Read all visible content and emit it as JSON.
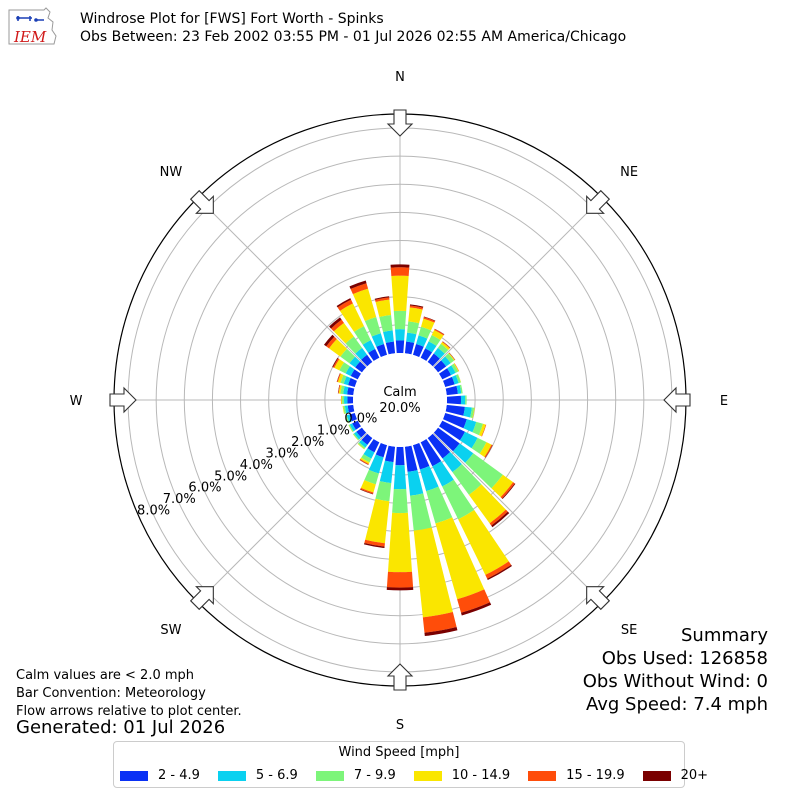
{
  "logo_text": "IEM",
  "title": {
    "line1": "Windrose Plot for [FWS] Fort Worth - Spinks",
    "line2": "Obs Between: 23 Feb 2002 03:55 PM - 01 Jul 2026 02:55 AM America/Chicago"
  },
  "notes": {
    "calm": "Calm values are < 2.0 mph",
    "convention": "Bar Convention: Meteorology",
    "arrows": "Flow arrows relative to plot center."
  },
  "generated": "Generated: 01 Jul 2026",
  "summary": {
    "heading": "Summary",
    "obs_used": "Obs Used: 126858",
    "obs_without_wind": "Obs Without Wind: 0",
    "avg_speed": "Avg Speed: 7.4 mph"
  },
  "legend": {
    "title": "Wind Speed [mph]",
    "items": [
      {
        "label": "2 - 4.9",
        "color": "#0a31f5"
      },
      {
        "label": "5 - 6.9",
        "color": "#0ad1f0"
      },
      {
        "label": "7 - 9.9",
        "color": "#7df57a"
      },
      {
        "label": "10 - 14.9",
        "color": "#fae600"
      },
      {
        "label": "15 - 19.9",
        "color": "#ff4d0a"
      },
      {
        "label": "20+",
        "color": "#7a0000"
      }
    ]
  },
  "chart_data": {
    "type": "windrose",
    "calm_label": "Calm",
    "calm_value": "20.0%",
    "direction_labels": [
      "N",
      "NE",
      "E",
      "SE",
      "S",
      "SW",
      "W",
      "NW"
    ],
    "radial_ticks": [
      "0.0%",
      "1.0%",
      "2.0%",
      "3.0%",
      "4.0%",
      "5.0%",
      "6.0%",
      "7.0%",
      "8.0%"
    ],
    "rmax": 8.5,
    "sector_width_deg": 10,
    "speed_bins": [
      "2 - 4.9",
      "5 - 6.9",
      "7 - 9.9",
      "10 - 14.9",
      "15 - 19.9",
      "20+"
    ],
    "directions_deg": [
      0,
      10,
      20,
      30,
      40,
      50,
      60,
      70,
      80,
      90,
      100,
      110,
      120,
      130,
      140,
      150,
      160,
      170,
      180,
      190,
      200,
      210,
      220,
      230,
      240,
      250,
      260,
      270,
      280,
      290,
      300,
      310,
      320,
      330,
      340,
      350
    ],
    "values": [
      [
        0.45,
        0.4,
        0.65,
        1.25,
        0.3,
        0.1
      ],
      [
        0.42,
        0.32,
        0.4,
        0.5,
        0.07,
        0.04
      ],
      [
        0.4,
        0.32,
        0.32,
        0.3,
        0.06,
        0.02
      ],
      [
        0.37,
        0.28,
        0.25,
        0.2,
        0.04,
        0.01
      ],
      [
        0.37,
        0.25,
        0.18,
        0.08,
        0.02,
        0.01
      ],
      [
        0.36,
        0.2,
        0.15,
        0.03,
        0.01,
        0.01
      ],
      [
        0.35,
        0.18,
        0.1,
        0.03,
        0.01,
        0.0
      ],
      [
        0.35,
        0.15,
        0.08,
        0.01,
        0.0,
        0.0
      ],
      [
        0.4,
        0.12,
        0.05,
        0.0,
        0.0,
        0.0
      ],
      [
        0.5,
        0.15,
        0.05,
        0.0,
        0.0,
        0.0
      ],
      [
        0.65,
        0.25,
        0.08,
        0.02,
        0.0,
        0.0
      ],
      [
        0.8,
        0.35,
        0.25,
        0.1,
        0.02,
        0.0
      ],
      [
        0.9,
        0.5,
        0.35,
        0.2,
        0.04,
        0.01
      ],
      [
        0.95,
        0.6,
        1.3,
        0.45,
        0.07,
        0.03
      ],
      [
        0.9,
        0.6,
        1.0,
        1.25,
        0.1,
        0.07
      ],
      [
        0.95,
        0.8,
        1.3,
        2.2,
        0.15,
        0.05
      ],
      [
        0.9,
        0.8,
        1.2,
        2.8,
        0.5,
        0.1
      ],
      [
        0.9,
        0.85,
        1.25,
        3.1,
        0.55,
        0.12
      ],
      [
        0.65,
        0.85,
        0.85,
        2.1,
        0.55,
        0.1
      ],
      [
        0.55,
        0.75,
        0.65,
        1.5,
        0.12,
        0.05
      ],
      [
        0.45,
        0.6,
        0.4,
        0.3,
        0.05,
        0.02
      ],
      [
        0.4,
        0.25,
        0.15,
        0.06,
        0.03,
        0.01
      ],
      [
        0.3,
        0.12,
        0.06,
        0.02,
        0.0,
        0.0
      ],
      [
        0.25,
        0.1,
        0.04,
        0.01,
        0.0,
        0.0
      ],
      [
        0.22,
        0.1,
        0.04,
        0.01,
        0.0,
        0.0
      ],
      [
        0.2,
        0.1,
        0.05,
        0.01,
        0.0,
        0.0
      ],
      [
        0.2,
        0.1,
        0.06,
        0.02,
        0.0,
        0.0
      ],
      [
        0.2,
        0.12,
        0.07,
        0.03,
        0.01,
        0.0
      ],
      [
        0.22,
        0.14,
        0.1,
        0.06,
        0.02,
        0.01
      ],
      [
        0.25,
        0.16,
        0.12,
        0.1,
        0.03,
        0.01
      ],
      [
        0.28,
        0.2,
        0.25,
        0.2,
        0.05,
        0.03
      ],
      [
        0.3,
        0.25,
        0.4,
        0.5,
        0.12,
        0.1
      ],
      [
        0.32,
        0.3,
        0.5,
        0.6,
        0.14,
        0.1
      ],
      [
        0.35,
        0.35,
        0.55,
        0.9,
        0.15,
        0.06
      ],
      [
        0.4,
        0.4,
        0.6,
        1.05,
        0.2,
        0.1
      ],
      [
        0.42,
        0.4,
        0.55,
        0.55,
        0.08,
        0.04
      ]
    ]
  }
}
